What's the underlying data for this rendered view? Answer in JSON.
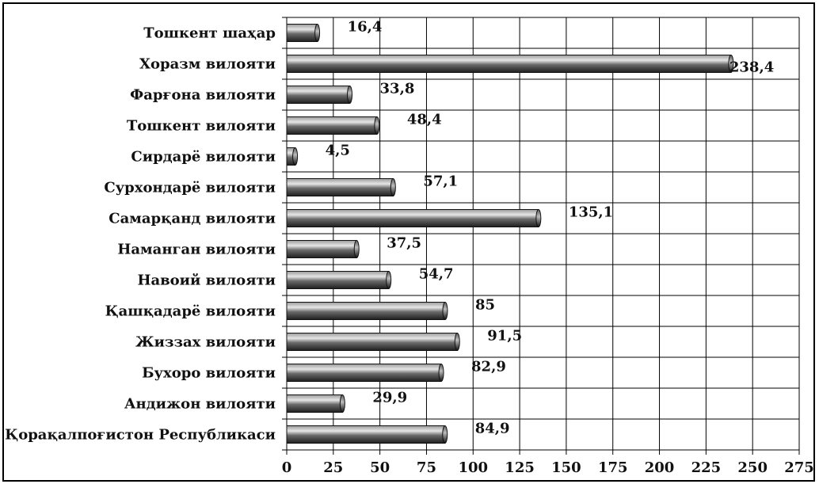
{
  "chart_data": {
    "type": "bar",
    "orientation": "horizontal",
    "categories": [
      "Тошкент шаҳар",
      "Хоразм вилояти",
      "Фарғона вилояти",
      "Тошкент вилояти",
      "Сирдарё вилояти",
      "Сурхондарё вилояти",
      "Самарқанд вилояти",
      "Наманган вилояти",
      "Навоий вилояти",
      "Қашқадарё вилояти",
      "Жиззах вилояти",
      "Бухоро вилояти",
      "Андижон вилояти",
      "Қорақалпоғистон Республикаси"
    ],
    "values": [
      16.4,
      238.4,
      33.8,
      48.4,
      4.5,
      57.1,
      135.1,
      37.5,
      54.7,
      85,
      91.5,
      82.9,
      29.9,
      84.9
    ],
    "value_labels": [
      "16,4",
      "238,4",
      "33,8",
      "48,4",
      "4,5",
      "57,1",
      "135,1",
      "37,5",
      "54,7",
      "85",
      "91,5",
      "82,9",
      "29,9",
      "84,9"
    ],
    "x_ticks": [
      "0",
      "25",
      "50",
      "75",
      "100",
      "125",
      "150",
      "175",
      "200",
      "225",
      "250",
      "275"
    ],
    "xlim": [
      0,
      275
    ],
    "grid": true,
    "bar_color": "#4a4a4a"
  }
}
